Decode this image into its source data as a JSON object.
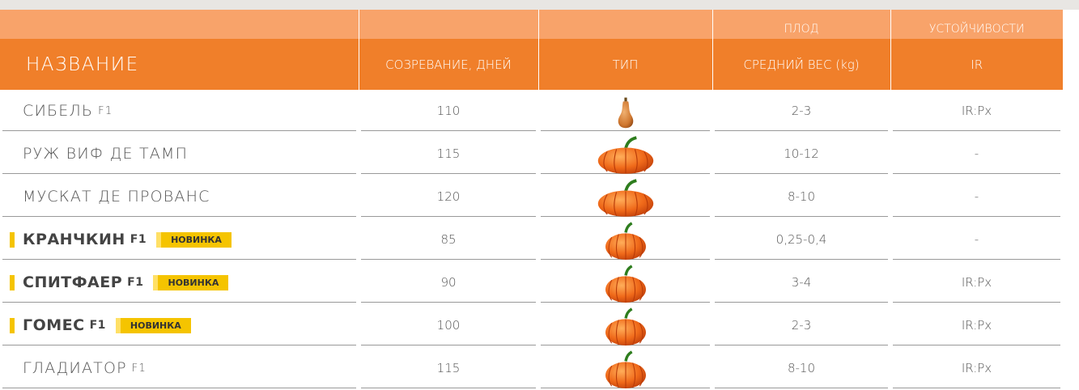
{
  "header": {
    "groups": [
      "ПЛОД",
      "УСТОЙЧИВОСТИ"
    ],
    "columns": [
      "НАЗВАНИЕ",
      "СОЗРЕВАНИЕ, ДНЕЙ",
      "ТИП",
      "СРЕДНИЙ ВЕС (kg)",
      "IR"
    ]
  },
  "rows": [
    {
      "name": "СИБЕЛЬ",
      "suffix": "F1",
      "days": 110,
      "weight": "2-3",
      "resistance": "IR:Px"
    },
    {
      "name": "РУЖ ВИФ ДЕ ТАМП",
      "days": 115,
      "weight": "10-12",
      "resistance": "-"
    },
    {
      "name": "МУСКАТ ДЕ ПРОВАНС",
      "days": 120,
      "weight": "8-10",
      "resistance": "-"
    },
    {
      "name": "КРАНЧКИН",
      "suffix": "F1",
      "badge": "НОВИНКА",
      "days": 85,
      "weight": "0,25-0,4",
      "resistance": "-"
    },
    {
      "name": "СПИТФАЕР",
      "suffix": "F1",
      "badge": "НОВИНКА",
      "days": 90,
      "weight": "3-4",
      "resistance": "IR:Px"
    },
    {
      "name": "ГОМЕС",
      "suffix": "F1",
      "badge": "НОВИНКА",
      "days": 100,
      "weight": "2-3",
      "resistance": "IR:Px"
    },
    {
      "name": "ГЛАДИАТОР",
      "suffix": "F1",
      "days": 115,
      "weight": "8-10",
      "resistance": "IR:Px"
    }
  ]
}
